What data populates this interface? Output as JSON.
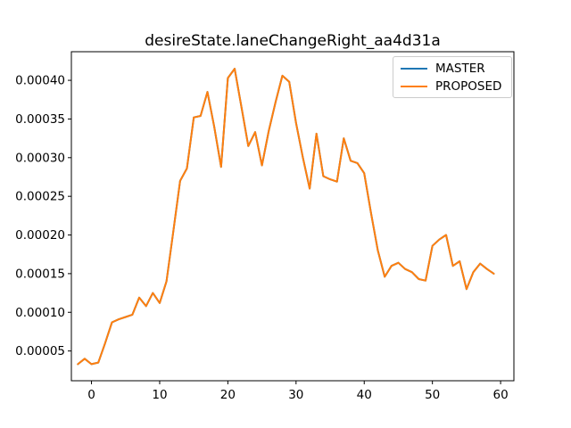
{
  "window": {
    "background": "#ffffff"
  },
  "chart_data": {
    "type": "line",
    "title": "desireState.laneChangeRight_aa4d31a",
    "xlabel": "",
    "ylabel": "",
    "grid": false,
    "legend_position": "upper right",
    "xlim": [
      -2.95,
      61.95
    ],
    "ylim": [
      1.15e-05,
      0.000437
    ],
    "xticks": [
      0,
      10,
      20,
      30,
      40,
      50,
      60
    ],
    "xtick_labels": [
      "0",
      "10",
      "20",
      "30",
      "40",
      "50",
      "60"
    ],
    "yticks": [
      5e-05,
      0.0001,
      0.00015,
      0.0002,
      0.00025,
      0.0003,
      0.00035,
      0.0004
    ],
    "ytick_labels": [
      "0.00005",
      "0.00010",
      "0.00015",
      "0.00020",
      "0.00025",
      "0.00030",
      "0.00035",
      "0.00040"
    ],
    "x": [
      -2,
      -1,
      0,
      1,
      2,
      3,
      4,
      5,
      6,
      7,
      8,
      9,
      10,
      11,
      12,
      13,
      14,
      15,
      16,
      17,
      18,
      19,
      20,
      21,
      22,
      23,
      24,
      25,
      26,
      27,
      28,
      29,
      30,
      31,
      32,
      33,
      34,
      35,
      36,
      37,
      38,
      39,
      40,
      41,
      42,
      43,
      44,
      45,
      46,
      47,
      48,
      49,
      50,
      51,
      52,
      53,
      54,
      55,
      56,
      57,
      58,
      59
    ],
    "series": [
      {
        "name": "MASTER",
        "color": "#1f77b4",
        "values": [
          3.3e-05,
          4e-05,
          3.3e-05,
          3.5e-05,
          6e-05,
          8.7e-05,
          9.1e-05,
          9.4e-05,
          9.7e-05,
          0.000119,
          0.000108,
          0.000125,
          0.000112,
          0.00014,
          0.000205,
          0.00027,
          0.000286,
          0.000352,
          0.000354,
          0.000385,
          0.00034,
          0.000288,
          0.000403,
          0.000415,
          0.000365,
          0.000315,
          0.000333,
          0.00029,
          0.000335,
          0.000372,
          0.000406,
          0.000398,
          0.000345,
          0.0003,
          0.00026,
          0.000331,
          0.000276,
          0.000272,
          0.000269,
          0.000325,
          0.000296,
          0.000293,
          0.00028,
          0.000228,
          0.00018,
          0.000146,
          0.00016,
          0.000164,
          0.000156,
          0.000152,
          0.000143,
          0.000141,
          0.000186,
          0.000194,
          0.0002,
          0.00016,
          0.000166,
          0.00013,
          0.000152,
          0.000163,
          0.000156,
          0.00015
        ]
      },
      {
        "name": "PROPOSED",
        "color": "#ff7f0e",
        "values": [
          3.3e-05,
          4e-05,
          3.3e-05,
          3.5e-05,
          6e-05,
          8.7e-05,
          9.1e-05,
          9.4e-05,
          9.7e-05,
          0.000119,
          0.000108,
          0.000125,
          0.000112,
          0.00014,
          0.000205,
          0.00027,
          0.000286,
          0.000352,
          0.000354,
          0.000385,
          0.00034,
          0.000288,
          0.000403,
          0.000415,
          0.000365,
          0.000315,
          0.000333,
          0.00029,
          0.000335,
          0.000372,
          0.000406,
          0.000398,
          0.000345,
          0.0003,
          0.00026,
          0.000331,
          0.000276,
          0.000272,
          0.000269,
          0.000325,
          0.000296,
          0.000293,
          0.00028,
          0.000228,
          0.00018,
          0.000146,
          0.00016,
          0.000164,
          0.000156,
          0.000152,
          0.000143,
          0.000141,
          0.000186,
          0.000194,
          0.0002,
          0.00016,
          0.000166,
          0.00013,
          0.000152,
          0.000163,
          0.000156,
          0.00015
        ]
      }
    ],
    "axis_color": "#000000",
    "tick_label_color": "#000000"
  },
  "legend": {
    "items": [
      {
        "label": "MASTER",
        "color": "#1f77b4"
      },
      {
        "label": "PROPOSED",
        "color": "#ff7f0e"
      }
    ]
  }
}
